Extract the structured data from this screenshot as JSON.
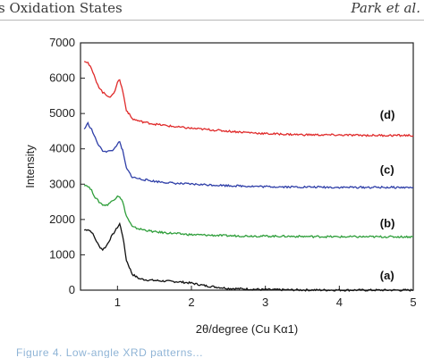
{
  "header": {
    "left_text": "s Oxidation States",
    "right_text": "Park et al."
  },
  "caption_text": "Figure 4. Low-angle XRD patterns...",
  "chart_data": {
    "type": "line",
    "title": "",
    "xlabel": "2θ/degree (Cu Kα1)",
    "ylabel": "Intensity",
    "xlim": [
      0.5,
      5
    ],
    "ylim": [
      0,
      7000
    ],
    "x_ticks": [
      1,
      2,
      3,
      4,
      5
    ],
    "y_ticks": [
      0,
      1000,
      2000,
      3000,
      4000,
      5000,
      6000,
      7000
    ],
    "grid": false,
    "legend": "none",
    "series": [
      {
        "name": "(a)",
        "color": "#111111",
        "points": [
          [
            0.55,
            1700
          ],
          [
            0.6,
            1720
          ],
          [
            0.65,
            1650
          ],
          [
            0.7,
            1450
          ],
          [
            0.75,
            1250
          ],
          [
            0.8,
            1150
          ],
          [
            0.85,
            1250
          ],
          [
            0.9,
            1450
          ],
          [
            0.95,
            1620
          ],
          [
            1.0,
            1780
          ],
          [
            1.03,
            1880
          ],
          [
            1.07,
            1550
          ],
          [
            1.12,
            850
          ],
          [
            1.2,
            450
          ],
          [
            1.3,
            320
          ],
          [
            1.4,
            290
          ],
          [
            1.6,
            260
          ],
          [
            1.8,
            240
          ],
          [
            2.0,
            200
          ],
          [
            2.2,
            120
          ],
          [
            2.5,
            50
          ],
          [
            3.0,
            15
          ],
          [
            3.5,
            5
          ],
          [
            4.0,
            2
          ],
          [
            4.5,
            0
          ],
          [
            5.0,
            0
          ]
        ],
        "label_x": 4.55,
        "label_y": 400
      },
      {
        "name": "(b)",
        "color": "#2e9e3a",
        "points": [
          [
            0.55,
            2980
          ],
          [
            0.6,
            2950
          ],
          [
            0.65,
            2820
          ],
          [
            0.7,
            2620
          ],
          [
            0.75,
            2500
          ],
          [
            0.8,
            2420
          ],
          [
            0.85,
            2400
          ],
          [
            0.9,
            2480
          ],
          [
            0.95,
            2550
          ],
          [
            1.0,
            2680
          ],
          [
            1.03,
            2650
          ],
          [
            1.07,
            2500
          ],
          [
            1.12,
            2100
          ],
          [
            1.2,
            1790
          ],
          [
            1.3,
            1730
          ],
          [
            1.5,
            1650
          ],
          [
            1.8,
            1600
          ],
          [
            2.0,
            1570
          ],
          [
            2.5,
            1540
          ],
          [
            3.0,
            1530
          ],
          [
            3.5,
            1520
          ],
          [
            4.0,
            1510
          ],
          [
            4.5,
            1510
          ],
          [
            5.0,
            1510
          ]
        ],
        "label_x": 4.55,
        "label_y": 1880
      },
      {
        "name": "(c)",
        "color": "#2f3fa8",
        "points": [
          [
            0.55,
            4560
          ],
          [
            0.6,
            4720
          ],
          [
            0.65,
            4550
          ],
          [
            0.7,
            4300
          ],
          [
            0.75,
            4080
          ],
          [
            0.8,
            3950
          ],
          [
            0.85,
            3930
          ],
          [
            0.9,
            3930
          ],
          [
            0.95,
            3980
          ],
          [
            1.0,
            4150
          ],
          [
            1.03,
            4180
          ],
          [
            1.07,
            3950
          ],
          [
            1.12,
            3450
          ],
          [
            1.2,
            3200
          ],
          [
            1.3,
            3150
          ],
          [
            1.5,
            3080
          ],
          [
            1.8,
            3020
          ],
          [
            2.0,
            3000
          ],
          [
            2.5,
            2960
          ],
          [
            3.0,
            2930
          ],
          [
            3.5,
            2920
          ],
          [
            4.0,
            2910
          ],
          [
            4.5,
            2910
          ],
          [
            5.0,
            2905
          ]
        ],
        "label_x": 4.55,
        "label_y": 3400
      },
      {
        "name": "(d)",
        "color": "#e02b2b",
        "points": [
          [
            0.55,
            6500
          ],
          [
            0.6,
            6440
          ],
          [
            0.65,
            6250
          ],
          [
            0.7,
            5980
          ],
          [
            0.75,
            5750
          ],
          [
            0.8,
            5600
          ],
          [
            0.85,
            5520
          ],
          [
            0.9,
            5480
          ],
          [
            0.95,
            5550
          ],
          [
            1.0,
            5900
          ],
          [
            1.03,
            5950
          ],
          [
            1.07,
            5650
          ],
          [
            1.12,
            5100
          ],
          [
            1.2,
            4850
          ],
          [
            1.3,
            4780
          ],
          [
            1.5,
            4700
          ],
          [
            1.8,
            4620
          ],
          [
            2.0,
            4580
          ],
          [
            2.5,
            4500
          ],
          [
            3.0,
            4430
          ],
          [
            3.5,
            4400
          ],
          [
            4.0,
            4390
          ],
          [
            4.5,
            4380
          ],
          [
            5.0,
            4380
          ]
        ],
        "label_x": 4.55,
        "label_y": 4950
      }
    ]
  }
}
